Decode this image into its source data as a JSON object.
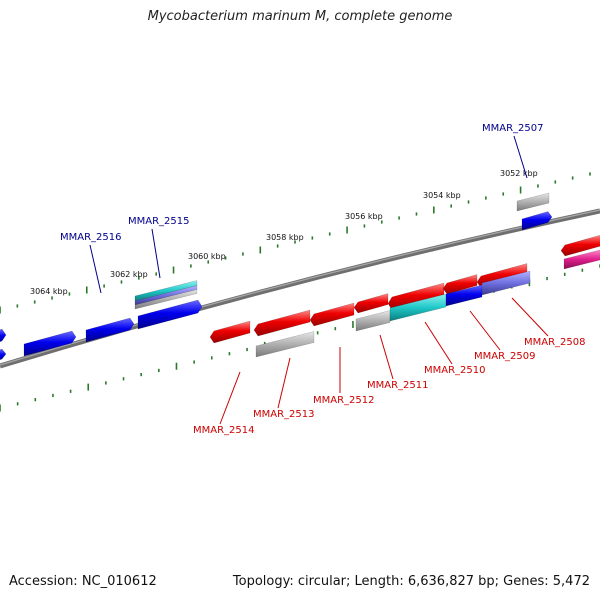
{
  "title": "Mycobacterium marinum M, complete genome",
  "footer": {
    "accession": "Accession: NC_010612",
    "summary": "Topology: circular; Length: 6,636,827 bp; Genes: 5,472"
  },
  "tick_labels": [
    "3052 kbp",
    "3054 kbp",
    "3056 kbp",
    "3058 kbp",
    "3060 kbp",
    "3062 kbp",
    "3064 kbp"
  ],
  "colors": {
    "forward_gene": "#0000ee",
    "reverse_gene": "#ee0000",
    "pseudo_gene": "#b0b0b0",
    "rna_gene": "#20c8c8",
    "other_gene": "#7070e0",
    "magenta_gene": "#e0208c",
    "backbone": "#777777",
    "tick": "#2a7a2a",
    "forward_label": "#00008b",
    "reverse_label": "#cc0000"
  },
  "gene_labels": {
    "forward": [
      "MMAR_2507",
      "MMAR_2515",
      "MMAR_2516"
    ],
    "reverse": [
      "MMAR_2508",
      "MMAR_2509",
      "MMAR_2510",
      "MMAR_2511",
      "MMAR_2512",
      "MMAR_2513",
      "MMAR_2514"
    ]
  }
}
